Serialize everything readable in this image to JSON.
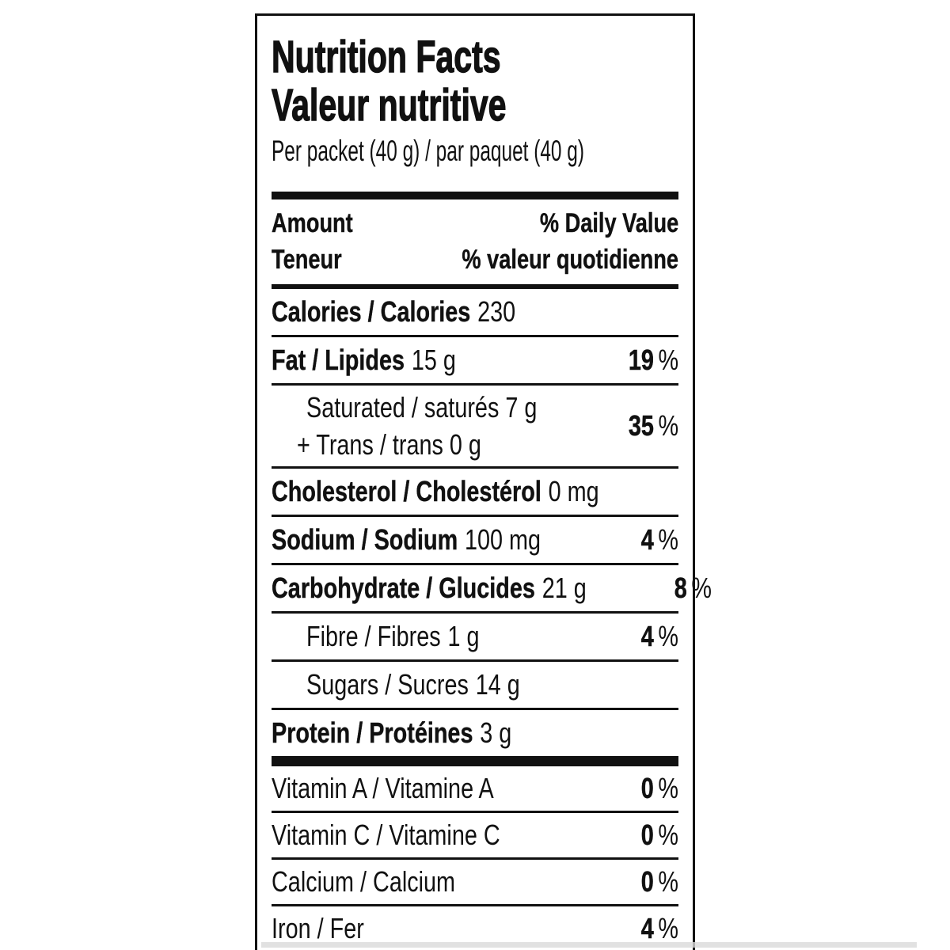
{
  "label": {
    "title_en": "Nutrition Facts",
    "title_fr": "Valeur nutritive",
    "serving": "Per packet (40 g) / par paquet (40 g)",
    "percent_sign": "%",
    "header": {
      "amount_en": "Amount",
      "dv_en": "% Daily Value",
      "amount_fr": "Teneur",
      "dv_fr": "% valeur quotidienne"
    },
    "calories": {
      "name": "Calories / Calories",
      "value": "230"
    },
    "rows": {
      "fat": {
        "name": "Fat / Lipides",
        "value": "15 g",
        "dv": "19"
      },
      "saturated": {
        "line1": "Saturated / saturés 7 g",
        "line2": "+ Trans / trans 0 g",
        "dv": "35"
      },
      "cholesterol": {
        "name": "Cholesterol / Cholestérol",
        "value": "0 mg"
      },
      "sodium": {
        "name": "Sodium / Sodium",
        "value": "100 mg",
        "dv": "4"
      },
      "carbohydrate": {
        "name": "Carbohydrate / Glucides",
        "value": "21 g",
        "dv": "8"
      },
      "fibre": {
        "name": "Fibre / Fibres",
        "value": "1 g",
        "dv": "4"
      },
      "sugars": {
        "name": "Sugars / Sucres",
        "value": "14 g"
      },
      "protein": {
        "name": "Protein / Protéines",
        "value": "3 g"
      },
      "vitamin_a": {
        "name": "Vitamin A / Vitamine A",
        "dv": "0"
      },
      "vitamin_c": {
        "name": "Vitamin C / Vitamine C",
        "dv": "0"
      },
      "calcium": {
        "name": "Calcium / Calcium",
        "dv": "0"
      },
      "iron": {
        "name": "Iron / Fer",
        "dv": "4"
      }
    },
    "colors": {
      "ink": "#111111",
      "background": "#ffffff"
    }
  }
}
